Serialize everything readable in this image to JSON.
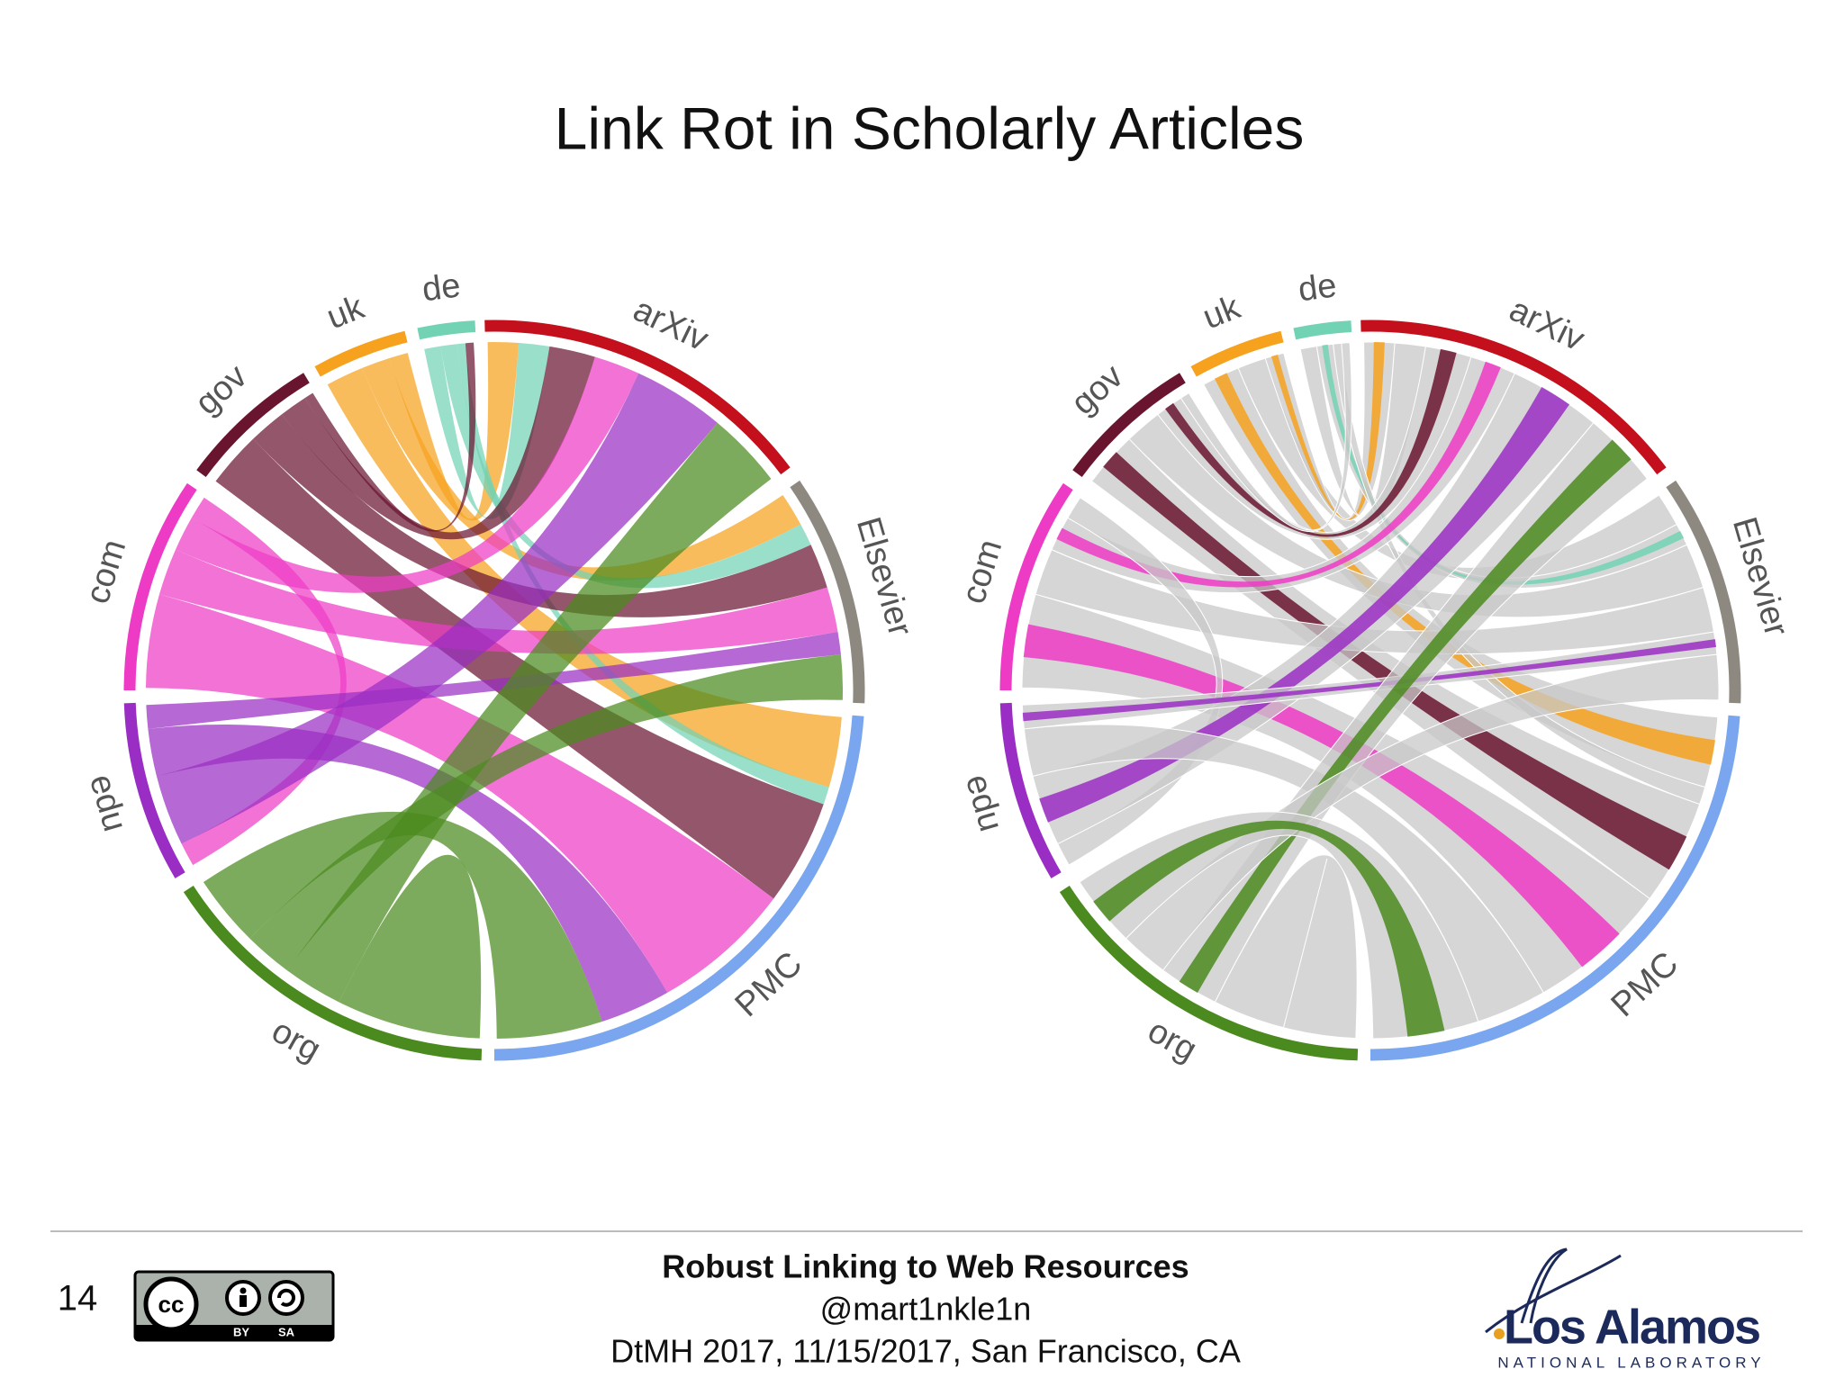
{
  "header": {
    "title": "Link Rot in Scholarly Articles"
  },
  "diagrams": [
    {
      "labels": [
        "de",
        "arXiv",
        "Elsevier",
        "PMC",
        "org",
        "edu",
        "com",
        "gov",
        "uk"
      ]
    },
    {
      "labels": [
        "de",
        "arXiv",
        "Elsevier",
        "PMC",
        "org",
        "edu",
        "com",
        "gov",
        "uk"
      ]
    }
  ],
  "footer": {
    "page_number": "14",
    "license": {
      "badge": "cc",
      "by": "BY",
      "sa": "SA"
    },
    "title": "Robust Linking to Web Resources",
    "handle": "@mart1nkle1n",
    "event": "DtMH 2017, 11/15/2017, San Francisco, CA",
    "logo": {
      "name": "Los Alamos",
      "subtitle": "NATIONAL LABORATORY"
    }
  }
}
